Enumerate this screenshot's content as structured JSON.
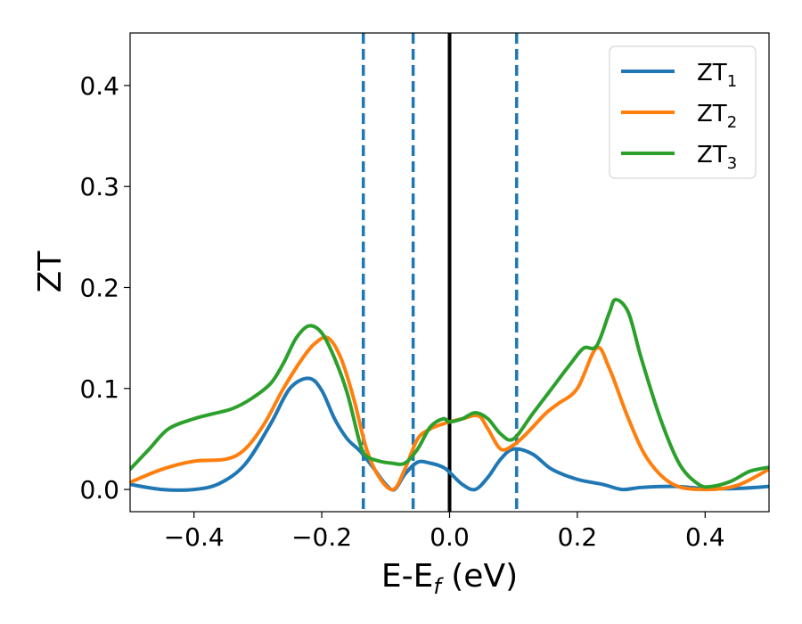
{
  "chart_data": {
    "type": "line",
    "title": "",
    "xlabel": "E-E",
    "xlabel_sub": "f",
    "xlabel_unit": " (eV)",
    "ylabel": "ZT",
    "xlim": [
      -0.5,
      0.5
    ],
    "ylim": [
      -0.022,
      0.452
    ],
    "xticks": [
      -0.4,
      -0.2,
      0.0,
      0.2,
      0.4
    ],
    "xtick_labels": [
      "−0.4",
      "−0.2",
      "0.0",
      "0.2",
      "0.4"
    ],
    "yticks": [
      0.0,
      0.1,
      0.2,
      0.3,
      0.4
    ],
    "ytick_labels": [
      "0.0",
      "0.1",
      "0.2",
      "0.3",
      "0.4"
    ],
    "grid": false,
    "legend_position": "top-right",
    "reference_lines": {
      "solid": [
        {
          "x": 0.0,
          "color": "#000000"
        }
      ],
      "dashed": [
        {
          "x": -0.135,
          "color": "#1f77b4"
        },
        {
          "x": -0.057,
          "color": "#1f77b4"
        },
        {
          "x": 0.105,
          "color": "#1f77b4"
        }
      ]
    },
    "series": [
      {
        "name": "ZT",
        "name_sub": "1",
        "color": "#1f77b4",
        "x": [
          -0.5,
          -0.45,
          -0.4,
          -0.36,
          -0.32,
          -0.28,
          -0.25,
          -0.22,
          -0.2,
          -0.18,
          -0.16,
          -0.14,
          -0.12,
          -0.1,
          -0.086,
          -0.07,
          -0.05,
          -0.03,
          -0.01,
          0.0,
          0.02,
          0.04,
          0.06,
          0.08,
          0.1,
          0.13,
          0.16,
          0.2,
          0.24,
          0.27,
          0.3,
          0.35,
          0.4,
          0.45,
          0.5
        ],
        "y": [
          0.005,
          0.0,
          0.0,
          0.006,
          0.025,
          0.065,
          0.1,
          0.11,
          0.098,
          0.07,
          0.05,
          0.038,
          0.022,
          0.005,
          0.0,
          0.015,
          0.027,
          0.026,
          0.022,
          0.017,
          0.005,
          0.0,
          0.012,
          0.03,
          0.04,
          0.035,
          0.02,
          0.01,
          0.005,
          0.0,
          0.002,
          0.003,
          0.001,
          0.001,
          0.003
        ]
      },
      {
        "name": "ZT",
        "name_sub": "2",
        "color": "#ff7f0e",
        "x": [
          -0.5,
          -0.45,
          -0.4,
          -0.35,
          -0.32,
          -0.29,
          -0.26,
          -0.23,
          -0.21,
          -0.19,
          -0.17,
          -0.15,
          -0.13,
          -0.11,
          -0.088,
          -0.07,
          -0.05,
          -0.03,
          -0.01,
          0.0,
          0.02,
          0.045,
          0.06,
          0.08,
          0.1,
          0.12,
          0.15,
          0.17,
          0.2,
          0.23,
          0.25,
          0.28,
          0.31,
          0.35,
          0.4,
          0.45,
          0.5
        ],
        "y": [
          0.007,
          0.02,
          0.028,
          0.03,
          0.04,
          0.065,
          0.1,
          0.13,
          0.145,
          0.15,
          0.13,
          0.09,
          0.04,
          0.012,
          0.0,
          0.02,
          0.05,
          0.06,
          0.065,
          0.067,
          0.07,
          0.073,
          0.06,
          0.04,
          0.044,
          0.055,
          0.075,
          0.085,
          0.1,
          0.14,
          0.12,
          0.07,
          0.03,
          0.005,
          0.0,
          0.004,
          0.02
        ]
      },
      {
        "name": "ZT",
        "name_sub": "3",
        "color": "#2ca02c",
        "x": [
          -0.5,
          -0.47,
          -0.44,
          -0.4,
          -0.37,
          -0.34,
          -0.31,
          -0.28,
          -0.26,
          -0.24,
          -0.22,
          -0.2,
          -0.18,
          -0.16,
          -0.14,
          -0.13,
          -0.11,
          -0.09,
          -0.07,
          -0.05,
          -0.03,
          -0.01,
          0.0,
          0.02,
          0.04,
          0.06,
          0.08,
          0.1,
          0.13,
          0.16,
          0.19,
          0.21,
          0.23,
          0.25,
          0.26,
          0.28,
          0.3,
          0.33,
          0.36,
          0.39,
          0.41,
          0.44,
          0.47,
          0.5
        ],
        "y": [
          0.02,
          0.04,
          0.06,
          0.07,
          0.075,
          0.08,
          0.09,
          0.105,
          0.125,
          0.15,
          0.162,
          0.155,
          0.13,
          0.095,
          0.045,
          0.033,
          0.028,
          0.026,
          0.026,
          0.04,
          0.062,
          0.07,
          0.067,
          0.07,
          0.076,
          0.07,
          0.055,
          0.05,
          0.075,
          0.1,
          0.125,
          0.14,
          0.142,
          0.175,
          0.188,
          0.175,
          0.13,
          0.07,
          0.025,
          0.005,
          0.003,
          0.008,
          0.018,
          0.022
        ]
      }
    ]
  }
}
